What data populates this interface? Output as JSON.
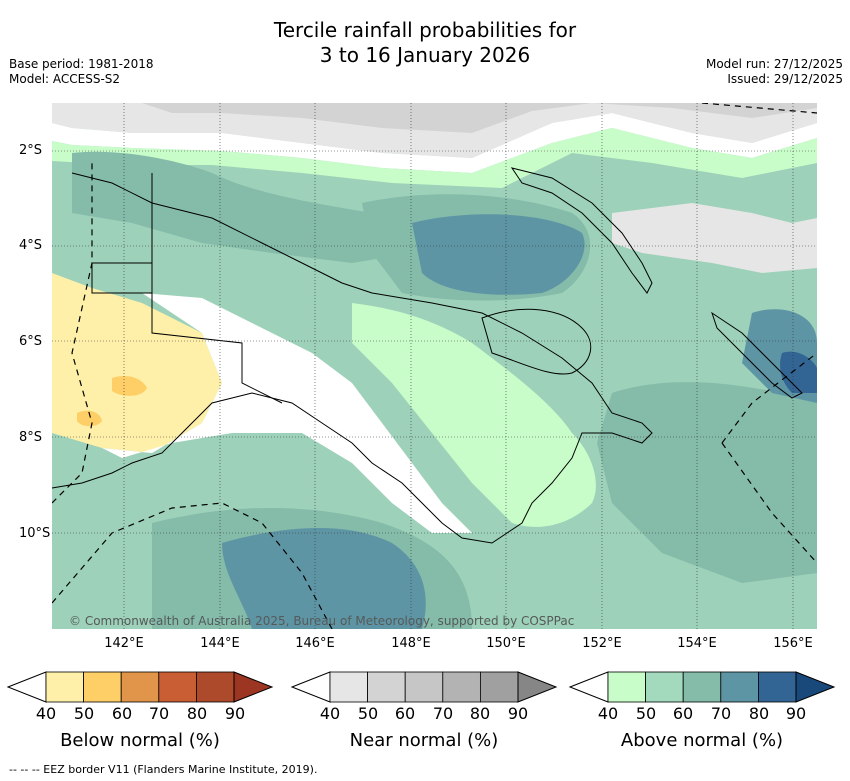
{
  "title": {
    "line1": "Tercile rainfall probabilities for",
    "line2": "3 to 16 January 2026"
  },
  "meta": {
    "base_period": "Base period: 1981-2018",
    "model": "Model: ACCESS-S2",
    "model_run": "Model run: 27/12/2025",
    "issued": "Issued: 29/12/2025"
  },
  "map": {
    "lat_labels": [
      "2°S",
      "4°S",
      "6°S",
      "8°S",
      "10°S"
    ],
    "lon_labels": [
      "142°E",
      "144°E",
      "146°E",
      "148°E",
      "150°E",
      "152°E",
      "154°E",
      "156°E"
    ],
    "copyright": "© Commonwealth of Australia 2025, Bureau of Meteorology, supported by COSPPac",
    "grid": true
  },
  "legend": {
    "ticks": [
      "40",
      "50",
      "60",
      "70",
      "80",
      "90"
    ],
    "below": {
      "title": "Below normal (%)",
      "colors": [
        "#ffffff",
        "#fef0a9",
        "#fecf66",
        "#e1954a",
        "#c95e34",
        "#ae4a2c",
        "#9c3521"
      ]
    },
    "near": {
      "title": "Near normal (%)",
      "colors": [
        "#ffffff",
        "#e6e6e6",
        "#d3d3d3",
        "#c6c6c6",
        "#b3b3b3",
        "#a0a0a0",
        "#868686"
      ]
    },
    "above": {
      "title": "Above normal (%)",
      "colors": [
        "#ffffff",
        "#c8fcc9",
        "#a3d9bc",
        "#84bba9",
        "#5e95a5",
        "#326593",
        "#19497a"
      ]
    }
  },
  "footnote": "--  --  -- EEZ border V11 (Flanders Marine Institute, 2019)."
}
